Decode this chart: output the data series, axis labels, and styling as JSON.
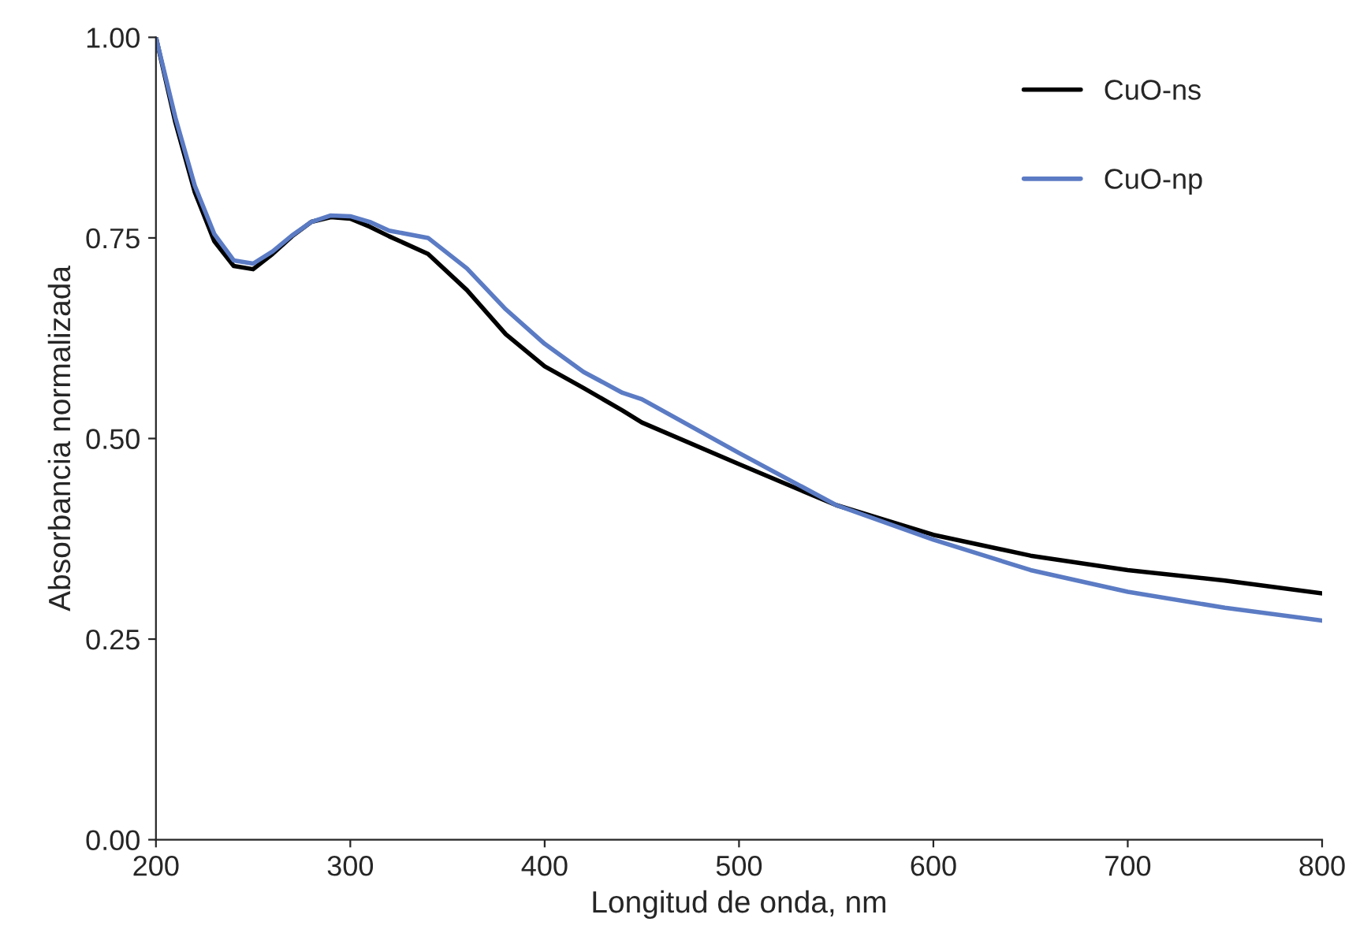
{
  "chart_data": {
    "type": "line",
    "xlabel": "Longitud de onda, nm",
    "ylabel": "Absorbancia normalizada",
    "xlim": [
      200,
      800
    ],
    "xticks": [
      200,
      300,
      400,
      500,
      600,
      700,
      800
    ],
    "ylim": [
      0,
      1
    ],
    "yticks": [
      {
        "value": 0,
        "label": "0.00"
      },
      {
        "value": 0.25,
        "label": "0.25"
      },
      {
        "value": 0.5,
        "label": "0.50"
      },
      {
        "value": 0.75,
        "label": "0.75"
      },
      {
        "value": 1,
        "label": "1.00"
      }
    ],
    "grid": false,
    "legend": "top right",
    "marker": "none",
    "line_style": "solid",
    "series": [
      {
        "name": "CuO-ns",
        "color": "#000000",
        "x": [
          200,
          210,
          220,
          230,
          240,
          250,
          260,
          270,
          280,
          290,
          300,
          310,
          320,
          340,
          360,
          380,
          400,
          420,
          440,
          450,
          500,
          550,
          600,
          650,
          700,
          750,
          800
        ],
        "values": [
          1.0,
          0.894,
          0.807,
          0.746,
          0.715,
          0.711,
          0.73,
          0.752,
          0.77,
          0.776,
          0.774,
          0.764,
          0.752,
          0.73,
          0.685,
          0.63,
          0.59,
          0.563,
          0.535,
          0.52,
          0.468,
          0.417,
          0.38,
          0.354,
          0.336,
          0.323,
          0.307
        ]
      },
      {
        "name": "CuO-np",
        "color": "#5b7bc4",
        "x": [
          200,
          210,
          220,
          230,
          240,
          250,
          260,
          270,
          280,
          290,
          300,
          310,
          320,
          340,
          360,
          380,
          400,
          420,
          440,
          450,
          500,
          550,
          600,
          650,
          700,
          750,
          800
        ],
        "values": [
          1.0,
          0.9,
          0.815,
          0.755,
          0.722,
          0.718,
          0.733,
          0.753,
          0.77,
          0.778,
          0.777,
          0.77,
          0.759,
          0.75,
          0.712,
          0.661,
          0.618,
          0.583,
          0.557,
          0.549,
          0.482,
          0.417,
          0.374,
          0.336,
          0.309,
          0.289,
          0.273
        ]
      }
    ]
  }
}
